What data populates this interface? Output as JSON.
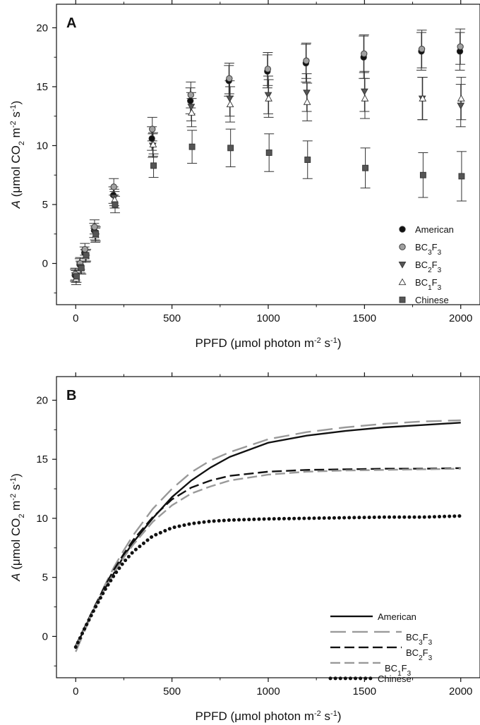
{
  "chart_data": [
    {
      "type": "scatter",
      "panel_label": "A",
      "xlabel": "PPFD (μmol photon m⁻² s⁻¹)",
      "ylabel": "A (μmol CO₂ m⁻² s⁻¹)",
      "xlim": [
        -100,
        2100
      ],
      "ylim": [
        -3.5,
        22
      ],
      "xticks": [
        "0",
        "500",
        "1000",
        "1500",
        "2000"
      ],
      "yticks": [
        "0",
        "5",
        "10",
        "15",
        "20"
      ],
      "legend_position": "bottom-right",
      "grid": false,
      "x": [
        0,
        25,
        50,
        100,
        200,
        400,
        600,
        800,
        1000,
        1200,
        1500,
        1800,
        2000
      ],
      "series": [
        {
          "name": "American",
          "marker": "circle",
          "color": "#111111",
          "values": [
            -1.0,
            -0.1,
            0.9,
            2.8,
            5.8,
            10.6,
            13.8,
            15.5,
            16.3,
            17.0,
            17.5,
            18.0,
            18.0
          ],
          "errors": [
            0.5,
            0.5,
            0.5,
            0.6,
            0.7,
            1.0,
            1.1,
            1.3,
            1.4,
            1.6,
            1.8,
            1.6,
            1.6
          ]
        },
        {
          "name": "BC3F3",
          "marker": "circle",
          "color": "#a0a0a0",
          "values": [
            -0.9,
            0.0,
            1.2,
            3.1,
            6.5,
            11.4,
            14.3,
            15.7,
            16.5,
            17.2,
            17.8,
            18.2,
            18.4
          ],
          "errors": [
            0.5,
            0.5,
            0.5,
            0.6,
            0.7,
            1.0,
            1.1,
            1.3,
            1.4,
            1.5,
            1.6,
            1.6,
            1.5
          ]
        },
        {
          "name": "BC2F3",
          "marker": "triangle-down",
          "color": "#555555",
          "values": [
            -1.1,
            -0.3,
            0.7,
            2.6,
            5.6,
            10.0,
            13.3,
            14.0,
            14.3,
            14.5,
            14.6,
            14.0,
            13.4
          ],
          "errors": [
            0.5,
            0.5,
            0.5,
            0.6,
            0.7,
            1.0,
            1.2,
            1.5,
            1.6,
            1.6,
            1.7,
            1.8,
            1.8
          ]
        },
        {
          "name": "BC1F3",
          "marker": "triangle-up",
          "color": "#ffffff",
          "values": [
            -1.3,
            -0.4,
            0.6,
            2.4,
            5.4,
            10.1,
            12.8,
            13.5,
            14.0,
            13.7,
            14.0,
            14.0,
            14.0
          ],
          "errors": [
            0.5,
            0.5,
            0.5,
            0.6,
            0.7,
            1.0,
            1.2,
            1.5,
            1.6,
            1.6,
            1.7,
            1.8,
            1.8
          ]
        },
        {
          "name": "Chinese",
          "marker": "square",
          "color": "#555555",
          "values": [
            -1.1,
            -0.4,
            0.7,
            2.5,
            5.0,
            8.3,
            9.9,
            9.8,
            9.4,
            8.8,
            8.1,
            7.5,
            7.4
          ],
          "errors": [
            0.5,
            0.5,
            0.5,
            0.6,
            0.7,
            1.0,
            1.4,
            1.6,
            1.6,
            1.6,
            1.7,
            1.9,
            2.1
          ]
        }
      ]
    },
    {
      "type": "line",
      "panel_label": "B",
      "xlabel": "PPFD (μmol photon m⁻² s⁻¹)",
      "ylabel": "A (μmol CO₂ m⁻² s⁻¹)",
      "xlim": [
        -100,
        2100
      ],
      "ylim": [
        -3.5,
        22
      ],
      "xticks": [
        "0",
        "500",
        "1000",
        "1500",
        "2000"
      ],
      "yticks": [
        "0",
        "5",
        "10",
        "15",
        "20"
      ],
      "legend_position": "bottom-right",
      "grid": false,
      "x": [
        0,
        50,
        100,
        150,
        200,
        250,
        300,
        400,
        500,
        600,
        700,
        800,
        1000,
        1200,
        1400,
        1600,
        1800,
        2000
      ],
      "series": [
        {
          "name": "American",
          "style": "solid",
          "color": "#111111",
          "values": [
            -0.9,
            0.8,
            2.5,
            4.0,
            5.4,
            6.8,
            8.0,
            10.0,
            11.8,
            13.2,
            14.3,
            15.2,
            16.4,
            17.0,
            17.4,
            17.7,
            17.9,
            18.1
          ]
        },
        {
          "name": "BC3F3",
          "style": "long-dash",
          "color": "#999999",
          "values": [
            -1.3,
            0.6,
            2.5,
            4.3,
            5.9,
            7.3,
            8.6,
            10.8,
            12.5,
            13.9,
            14.9,
            15.6,
            16.7,
            17.3,
            17.7,
            18.0,
            18.2,
            18.3
          ]
        },
        {
          "name": "BC2F3",
          "style": "dash",
          "color": "#111111",
          "values": [
            -0.8,
            0.9,
            2.6,
            4.2,
            5.7,
            7.0,
            8.2,
            10.1,
            11.6,
            12.6,
            13.2,
            13.6,
            13.95,
            14.1,
            14.15,
            14.2,
            14.2,
            14.25
          ]
        },
        {
          "name": "BC1F3",
          "style": "dash",
          "color": "#999999",
          "values": [
            -0.9,
            0.8,
            2.5,
            4.0,
            5.4,
            6.7,
            7.8,
            9.7,
            11.1,
            12.1,
            12.7,
            13.2,
            13.7,
            13.95,
            14.05,
            14.1,
            14.15,
            14.2
          ]
        },
        {
          "name": "Chinese",
          "style": "dotted",
          "color": "#111111",
          "values": [
            -0.9,
            0.8,
            2.4,
            3.9,
            5.2,
            6.3,
            7.2,
            8.5,
            9.2,
            9.55,
            9.75,
            9.85,
            9.95,
            10.0,
            10.05,
            10.1,
            10.1,
            10.2
          ]
        }
      ]
    }
  ]
}
